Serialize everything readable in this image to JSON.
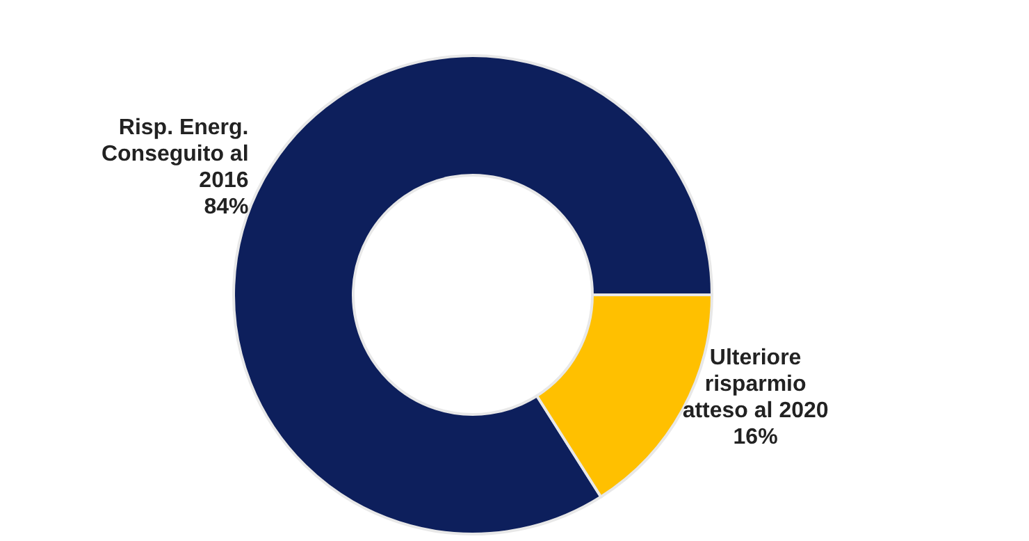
{
  "chart_data": {
    "type": "donut",
    "categories": [
      "Risp. Energ. Conseguito al 2016",
      "Ulteriore risparmio atteso al 2020"
    ],
    "values": [
      84,
      16
    ],
    "colors": [
      "#0d1f5c",
      "#ffc000"
    ],
    "value_labels": [
      "84%",
      "16%"
    ]
  }
}
